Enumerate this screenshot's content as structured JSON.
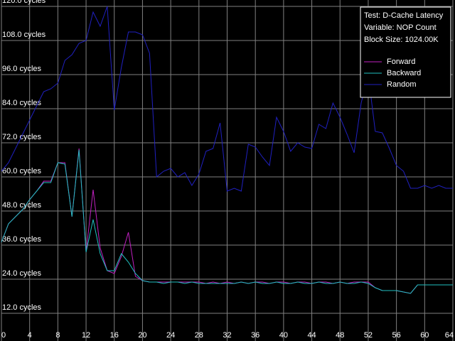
{
  "chart_data": {
    "type": "line",
    "annotations": [
      "Test: D-Cache Latency",
      "Variable: NOP Count",
      "Block Size: 1024.00K"
    ],
    "x": [
      0,
      1,
      2,
      3,
      4,
      5,
      6,
      7,
      8,
      9,
      10,
      11,
      12,
      13,
      14,
      15,
      16,
      17,
      18,
      19,
      20,
      21,
      22,
      23,
      24,
      25,
      26,
      27,
      28,
      29,
      30,
      31,
      32,
      33,
      34,
      35,
      36,
      37,
      38,
      39,
      40,
      41,
      42,
      43,
      44,
      45,
      46,
      47,
      48,
      49,
      50,
      51,
      52,
      53,
      54,
      55,
      56,
      57,
      58,
      59,
      60,
      61,
      62,
      63,
      64
    ],
    "series": [
      {
        "name": "Forward",
        "color": "#c020c0",
        "values": [
          37,
          43.5,
          46,
          48.5,
          52,
          55,
          58.5,
          58.5,
          65,
          65,
          46,
          70,
          33.5,
          55.5,
          35,
          27,
          26,
          32,
          40.5,
          25,
          23.5,
          23,
          23,
          23,
          23,
          23,
          23,
          23,
          23,
          22.5,
          23,
          22.5,
          23,
          22.5,
          23,
          22.5,
          23,
          23,
          22.5,
          23,
          23,
          22.5,
          23,
          23,
          22.5,
          23,
          23,
          22.5,
          23,
          22.5,
          23,
          23,
          23,
          21,
          20,
          20,
          20,
          19.5,
          19,
          22,
          22,
          22,
          22,
          22,
          22
        ]
      },
      {
        "name": "Backward",
        "color": "#20c0c0",
        "values": [
          37,
          43.5,
          46,
          48.5,
          52,
          55,
          58,
          58,
          65,
          64.5,
          46,
          69.5,
          33.5,
          45,
          33,
          27,
          27,
          33,
          30,
          26,
          23.5,
          23,
          23,
          22.5,
          23,
          23,
          22.5,
          23,
          22.5,
          22.5,
          22.5,
          22.5,
          22.5,
          22.5,
          23,
          22.5,
          23,
          22.5,
          22.5,
          23,
          22.5,
          22.5,
          23,
          22.5,
          22.5,
          23,
          22.5,
          22.5,
          23,
          22.5,
          22.5,
          23,
          22.5,
          21,
          20,
          20,
          20,
          19.5,
          19,
          22,
          22,
          22,
          22,
          22,
          22
        ]
      },
      {
        "name": "Random",
        "color": "#2020c0",
        "values": [
          62,
          65,
          70,
          75,
          80,
          85,
          90,
          91,
          93,
          101,
          103,
          107,
          108,
          118,
          113,
          120,
          83.5,
          98.5,
          111,
          111,
          110,
          103.5,
          60,
          62,
          63,
          60,
          61.5,
          57,
          61,
          69,
          70,
          79,
          55,
          56,
          55,
          71.5,
          70.5,
          67,
          64,
          81,
          76,
          69,
          72,
          70.5,
          70,
          78.5,
          77,
          86,
          81,
          75,
          68.5,
          86,
          96,
          76,
          75.5,
          70,
          64,
          62,
          56,
          56,
          57,
          56,
          57,
          56,
          56
        ]
      }
    ],
    "xlim": [
      0,
      64
    ],
    "xticks": [
      0,
      4,
      8,
      12,
      16,
      20,
      24,
      28,
      32,
      36,
      40,
      44,
      48,
      52,
      56,
      60,
      64
    ],
    "ylim": [
      2.25,
      122.25
    ],
    "yticks": [
      {
        "value": 12,
        "label": "12.0 cycles"
      },
      {
        "value": 24,
        "label": "24.0 cycles"
      },
      {
        "value": 36,
        "label": "36.0 cycles"
      },
      {
        "value": 48,
        "label": "48.0 cycles"
      },
      {
        "value": 60,
        "label": "60.0 cycles"
      },
      {
        "value": 72,
        "label": "72.0 cycles"
      },
      {
        "value": 84,
        "label": "84.0 cycles"
      },
      {
        "value": 96,
        "label": "96.0 cycles"
      },
      {
        "value": 108,
        "label": "108.0 cycles"
      },
      {
        "value": 120,
        "label": "120.0 cycles"
      }
    ],
    "grid": true,
    "legend": "top-right"
  }
}
